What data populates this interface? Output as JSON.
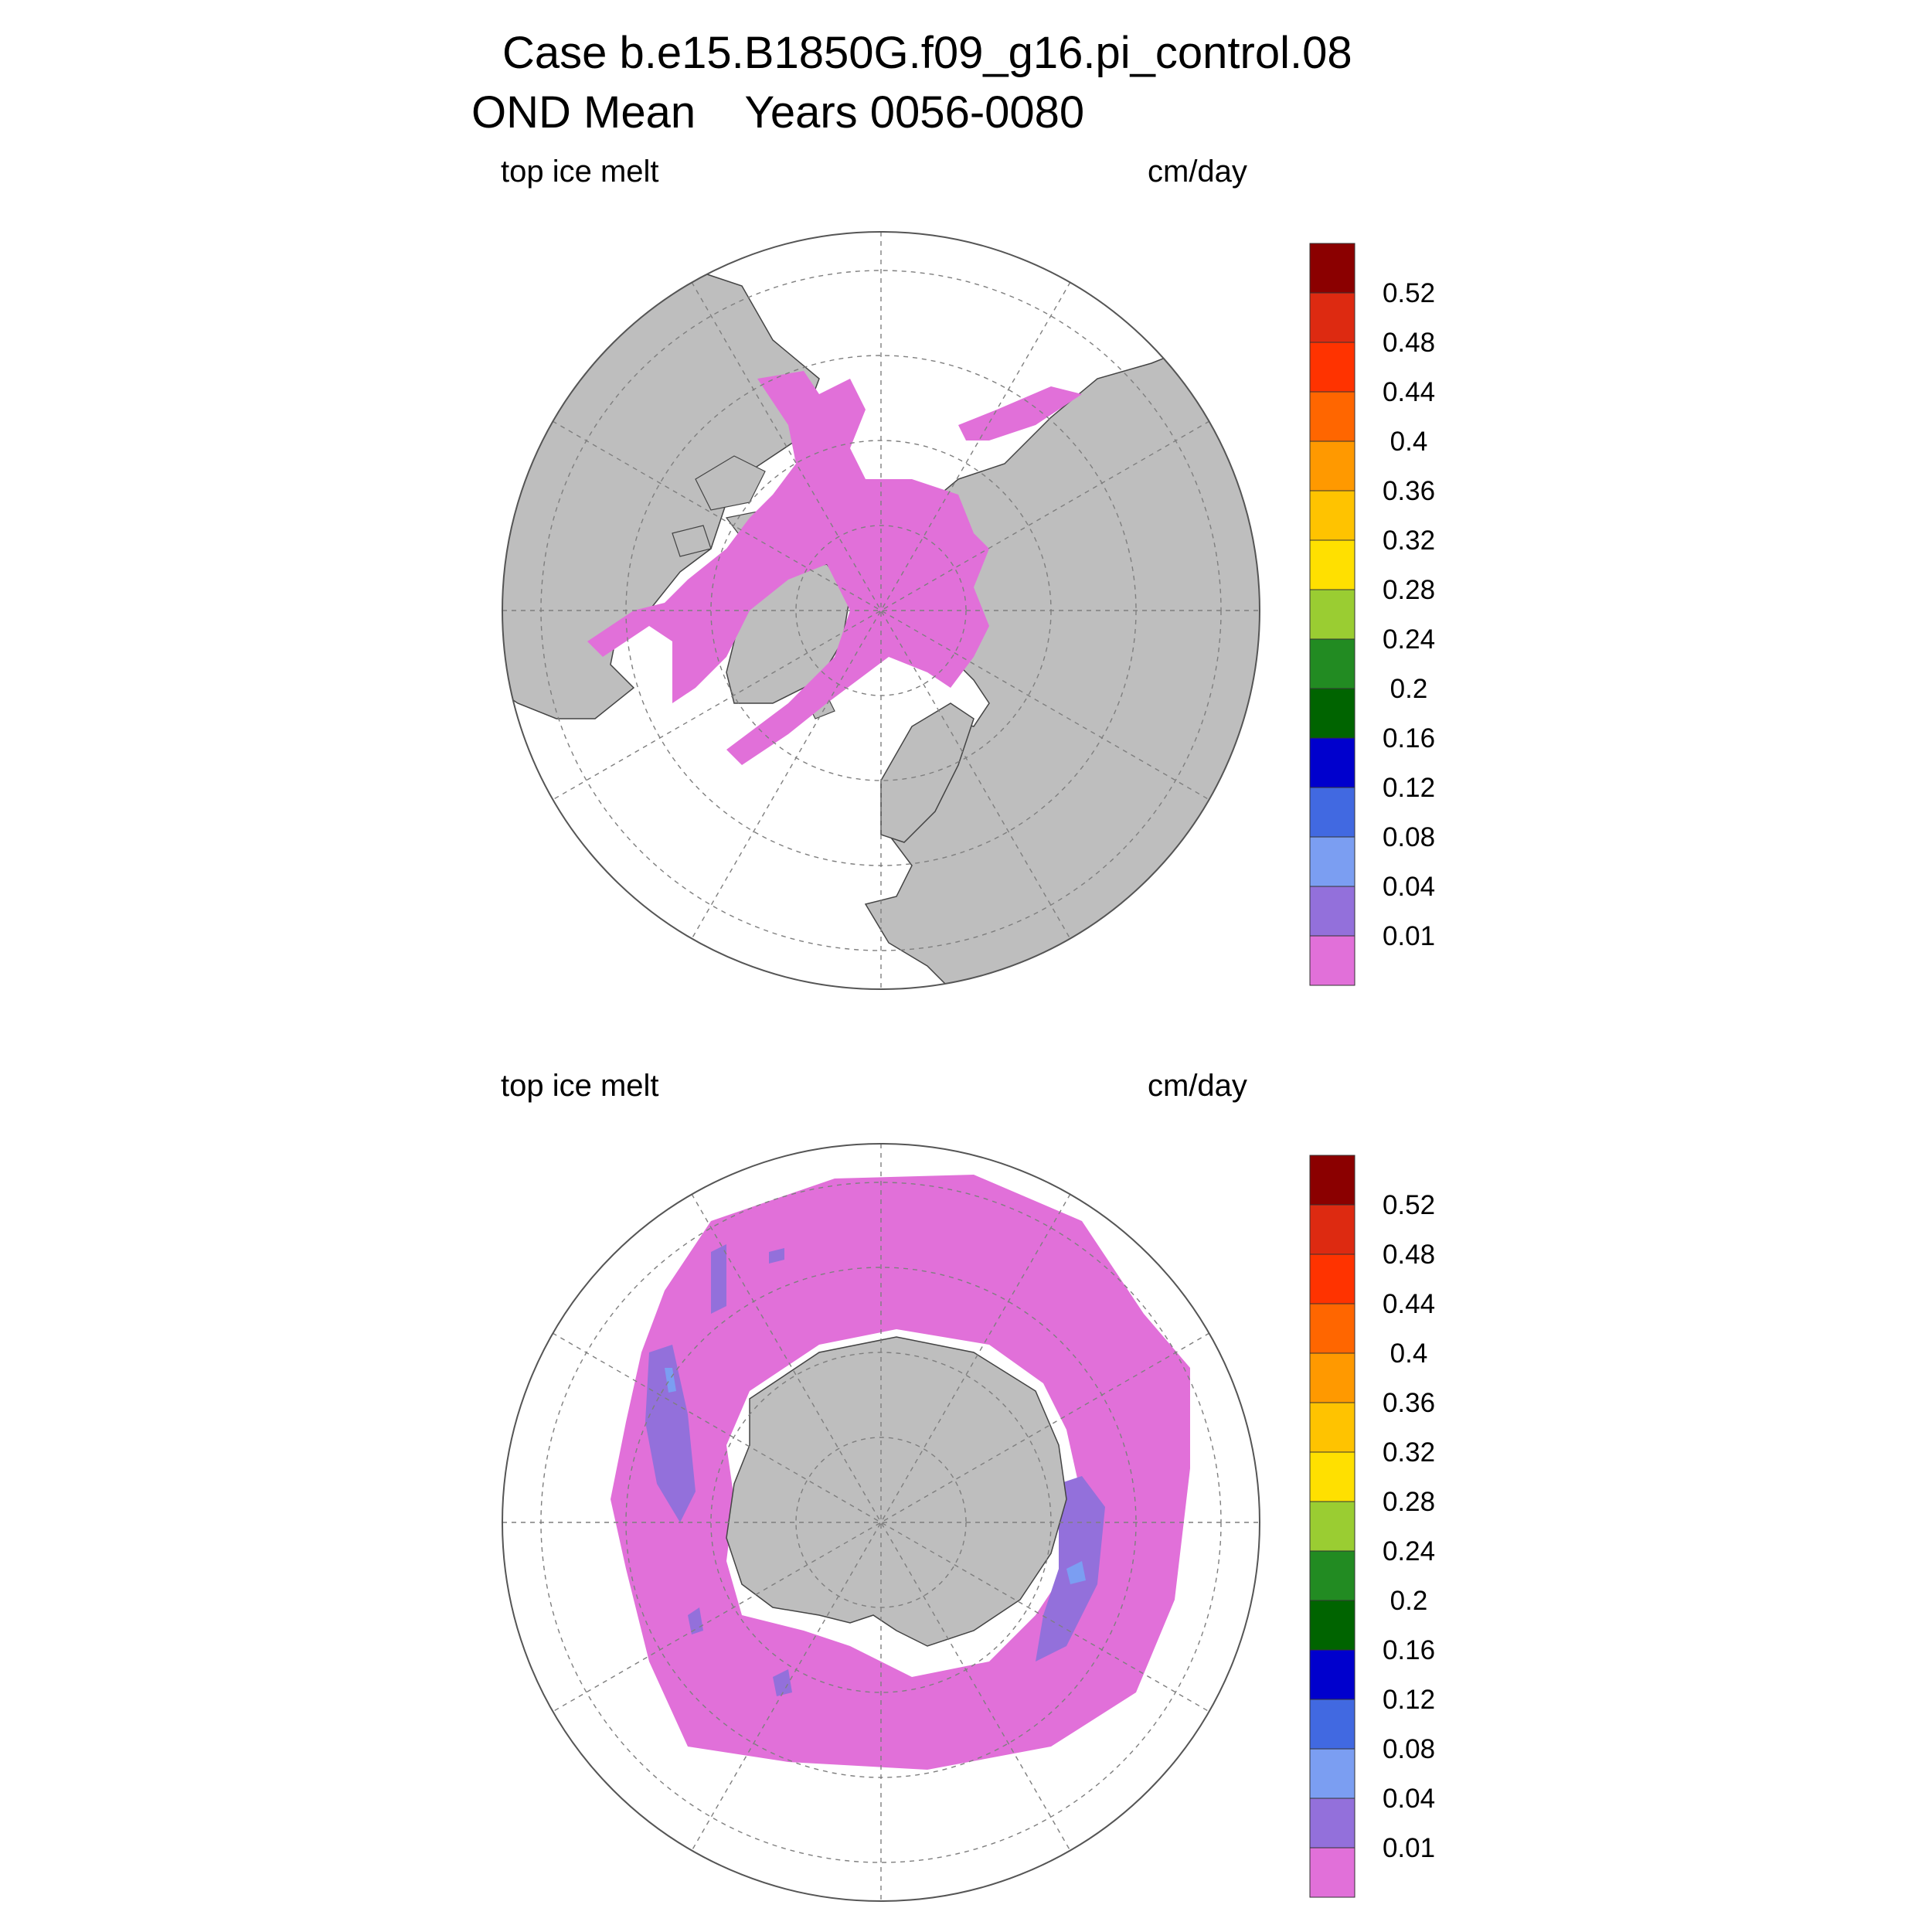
{
  "title": {
    "line1": "Case b.e15.B1850G.f09_g16.pi_control.08",
    "line2": "OND Mean    Years 0056-0080"
  },
  "panels": [
    {
      "id": "north",
      "hemisphere": "Northern",
      "left_label": "top ice melt",
      "right_label": "cm/day"
    },
    {
      "id": "south",
      "hemisphere": "Southern",
      "left_label": "top ice melt",
      "right_label": "cm/day"
    }
  ],
  "colorbar": {
    "units": "cm/day",
    "levels": [
      "0.01",
      "0.04",
      "0.08",
      "0.12",
      "0.16",
      "0.2",
      "0.24",
      "0.28",
      "0.32",
      "0.36",
      "0.4",
      "0.44",
      "0.48",
      "0.52"
    ],
    "colors": [
      "#e170d9",
      "#9370db",
      "#7b9ef2",
      "#4169e1",
      "#0000cd",
      "#006400",
      "#228b22",
      "#9acd32",
      "#ffe000",
      "#ffc300",
      "#ff9900",
      "#ff6600",
      "#ff3300",
      "#dd2a11",
      "#8b0000"
    ]
  },
  "style": {
    "land_color": "#bebebe",
    "ocean_color": "#ffffff",
    "gridline_color": "#7f7f7f",
    "ice_low_color": "#e170d9"
  }
}
